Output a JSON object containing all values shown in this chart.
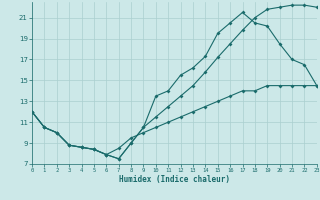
{
  "title": "",
  "xlabel": "Humidex (Indice chaleur)",
  "xlim": [
    0,
    23
  ],
  "ylim": [
    7,
    22.5
  ],
  "xticks": [
    0,
    1,
    2,
    3,
    4,
    5,
    6,
    7,
    8,
    9,
    10,
    11,
    12,
    13,
    14,
    15,
    16,
    17,
    18,
    19,
    20,
    21,
    22,
    23
  ],
  "yticks": [
    7,
    9,
    11,
    13,
    15,
    17,
    19,
    21
  ],
  "background_color": "#cce8e8",
  "grid_color": "#aacfcf",
  "line_color": "#1a6b6b",
  "line1_x": [
    0,
    1,
    2,
    3,
    4,
    5,
    6,
    7,
    8,
    9,
    10,
    11,
    12,
    13,
    14,
    15,
    16,
    17,
    18,
    19,
    20,
    21,
    22,
    23
  ],
  "line1_y": [
    12,
    10.5,
    10,
    8.8,
    8.6,
    8.4,
    7.9,
    7.5,
    9.0,
    10.5,
    13.5,
    14.0,
    15.5,
    16.2,
    17.3,
    19.5,
    20.5,
    21.5,
    20.5,
    20.2,
    18.5,
    17.0,
    16.5,
    14.5
  ],
  "line2_x": [
    0,
    1,
    2,
    3,
    4,
    5,
    6,
    7,
    8,
    9,
    10,
    11,
    12,
    13,
    14,
    15,
    16,
    17,
    18,
    19,
    20,
    21,
    22,
    23
  ],
  "line2_y": [
    12,
    10.5,
    10,
    8.8,
    8.6,
    8.4,
    7.9,
    7.5,
    9.0,
    10.5,
    11.5,
    12.5,
    13.5,
    14.5,
    15.8,
    17.2,
    18.5,
    19.8,
    21.0,
    21.8,
    22.0,
    22.2,
    22.2,
    22.0
  ],
  "line3_x": [
    0,
    1,
    2,
    3,
    4,
    5,
    6,
    7,
    8,
    9,
    10,
    11,
    12,
    13,
    14,
    15,
    16,
    17,
    18,
    19,
    20,
    21,
    22,
    23
  ],
  "line3_y": [
    12,
    10.5,
    10,
    8.8,
    8.6,
    8.4,
    7.9,
    8.5,
    9.5,
    10.0,
    10.5,
    11.0,
    11.5,
    12.0,
    12.5,
    13.0,
    13.5,
    14.0,
    14.0,
    14.5,
    14.5,
    14.5,
    14.5,
    14.5
  ]
}
